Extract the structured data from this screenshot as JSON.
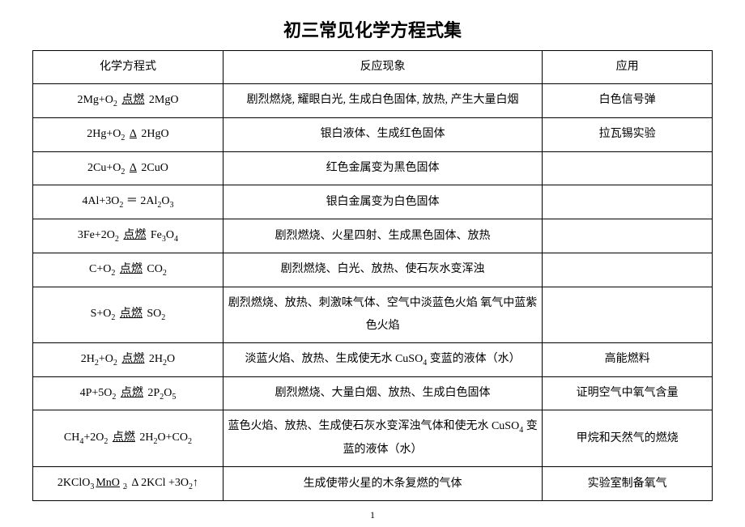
{
  "document": {
    "title": "初三常见化学方程式集",
    "page_number": "1",
    "text_color": "#000000",
    "background_color": "#ffffff",
    "border_color": "#000000",
    "title_fontsize": 22,
    "body_fontsize": 14,
    "line_height": 2,
    "columns": [
      {
        "label": "化学方程式",
        "width_pct": 28
      },
      {
        "label": "反应现象",
        "width_pct": 47
      },
      {
        "label": "应用",
        "width_pct": 25
      }
    ],
    "rows": [
      {
        "equation_parts": [
          "2Mg+O",
          {
            "sub": "2"
          },
          " ",
          {
            "u": "点燃"
          },
          " 2MgO"
        ],
        "phenomenon": "剧烈燃烧, 耀眼白光, 生成白色固体, 放热, 产生大量白烟",
        "application": "白色信号弹"
      },
      {
        "equation_parts": [
          "2Hg+O",
          {
            "sub": "2"
          },
          " ",
          {
            "u": "Δ"
          },
          " 2HgO"
        ],
        "phenomenon": "银白液体、生成红色固体",
        "application": "拉瓦锡实验"
      },
      {
        "equation_parts": [
          "2Cu+O",
          {
            "sub": "2"
          },
          " ",
          {
            "u": "Δ"
          },
          " 2CuO"
        ],
        "phenomenon": "红色金属变为黑色固体",
        "application": ""
      },
      {
        "equation_parts": [
          "4Al+3O",
          {
            "sub": "2"
          },
          " ＝ 2Al",
          {
            "sub": "2"
          },
          "O",
          {
            "sub": "3"
          }
        ],
        "phenomenon": "银白金属变为白色固体",
        "application": ""
      },
      {
        "equation_parts": [
          "3Fe+2O",
          {
            "sub": "2"
          },
          " ",
          {
            "u": "点燃"
          },
          " Fe",
          {
            "sub": "3"
          },
          "O",
          {
            "sub": "4"
          }
        ],
        "phenomenon": "剧烈燃烧、火星四射、生成黑色固体、放热",
        "application": ""
      },
      {
        "equation_parts": [
          "C+O",
          {
            "sub": "2"
          },
          "  ",
          {
            "u": "点燃"
          },
          " CO",
          {
            "sub": "2"
          }
        ],
        "phenomenon": "剧烈燃烧、白光、放热、使石灰水变浑浊",
        "application": ""
      },
      {
        "equation_parts": [
          "S+O",
          {
            "sub": "2"
          },
          "  ",
          {
            "u": "点燃"
          },
          " SO",
          {
            "sub": "2"
          }
        ],
        "phenomenon": "剧烈燃烧、放热、刺激味气体、空气中淡蓝色火焰 氧气中蓝紫色火焰",
        "application": ""
      },
      {
        "equation_parts": [
          "2H",
          {
            "sub": "2"
          },
          "+O",
          {
            "sub": "2"
          },
          " ",
          {
            "u": "点燃"
          },
          " 2H",
          {
            "sub": "2"
          },
          "O"
        ],
        "phenomenon_parts": [
          "淡蓝火焰、放热、生成使无水 CuSO",
          {
            "sub": "4"
          },
          " 变蓝的液体（水）"
        ],
        "application": "高能燃料"
      },
      {
        "equation_parts": [
          "4P+5O",
          {
            "sub": "2"
          },
          "  ",
          {
            "u": "点燃"
          },
          " 2P",
          {
            "sub": "2"
          },
          "O",
          {
            "sub": "5"
          }
        ],
        "phenomenon": "剧烈燃烧、大量白烟、放热、生成白色固体",
        "application": "证明空气中氧气含量"
      },
      {
        "equation_parts": [
          "CH",
          {
            "sub": "4"
          },
          "+2O",
          {
            "sub": "2"
          },
          " ",
          {
            "u": "点燃"
          },
          " 2H",
          {
            "sub": "2"
          },
          "O+CO",
          {
            "sub": "2"
          }
        ],
        "phenomenon_parts": [
          "蓝色火焰、放热、生成使石灰水变浑浊气体和使无水 CuSO",
          {
            "sub": "4"
          },
          " 变蓝的液体（水）"
        ],
        "application": "甲烷和天然气的燃烧"
      },
      {
        "equation_parts": [
          "2KClO",
          {
            "sub": "3"
          },
          {
            "u": "MnO"
          },
          {
            "sub_u": "2"
          },
          "   Δ 2KCl +3O",
          {
            "sub": "2"
          },
          "↑"
        ],
        "phenomenon": "生成使带火星的木条复燃的气体",
        "application": "实验室制备氧气"
      }
    ]
  }
}
